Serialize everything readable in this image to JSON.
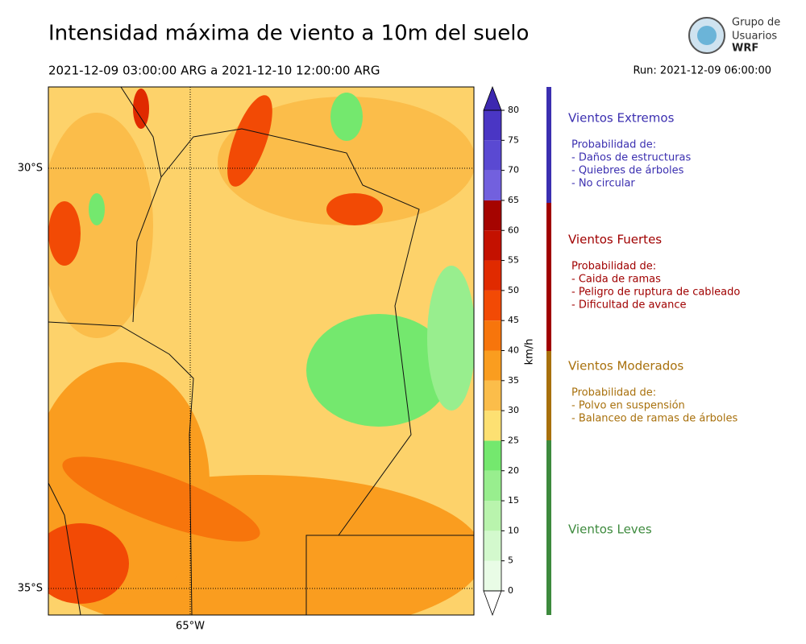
{
  "title": "Intensidad máxima de viento a 10m del suelo",
  "period": "2021-12-09 03:00:00 ARG  a  2021-12-10 12:00:00 ARG",
  "run": "Run: 2021-12-09 06:00:00",
  "logo": {
    "line1": "Grupo de",
    "line2": "Usuarios",
    "line3": "WRF"
  },
  "map": {
    "lat_labels": [
      "30°S",
      "35°S"
    ],
    "lon_labels": [
      "65°W"
    ]
  },
  "colorbar": {
    "label": "km/h",
    "ticks": [
      0,
      5,
      10,
      15,
      20,
      25,
      30,
      35,
      40,
      45,
      50,
      55,
      60,
      65,
      70,
      75,
      80
    ],
    "colors": [
      "#e9fce6",
      "#d3f9cd",
      "#b9f4ad",
      "#98ee8e",
      "#74e86e",
      "#fde072",
      "#fbbd4a",
      "#fa9d1f",
      "#f7750c",
      "#f24a05",
      "#e02a00",
      "#c41100",
      "#a50400",
      "#7260de",
      "#5a49d2",
      "#4a36c4"
    ]
  },
  "legend": [
    {
      "title": "Vientos Extremos",
      "color": "#3b2fb0",
      "lines": [
        "Probabilidad de:",
        "- Daños de estructuras",
        "- Quiebres de árboles",
        "- No circular"
      ]
    },
    {
      "title": "Vientos Fuertes",
      "color": "#a00000",
      "lines": [
        "Probabilidad de:",
        "- Caida de ramas",
        "- Peligro de ruptura de cableado",
        "- Dificultad de avance"
      ]
    },
    {
      "title": "Vientos Moderados",
      "color": "#a8700c",
      "lines": [
        "Probabilidad de:",
        "- Polvo en suspensión",
        "- Balanceo de ramas de árboles"
      ]
    },
    {
      "title": "Vientos Leves",
      "color": "#3d8a3d",
      "lines": []
    }
  ]
}
